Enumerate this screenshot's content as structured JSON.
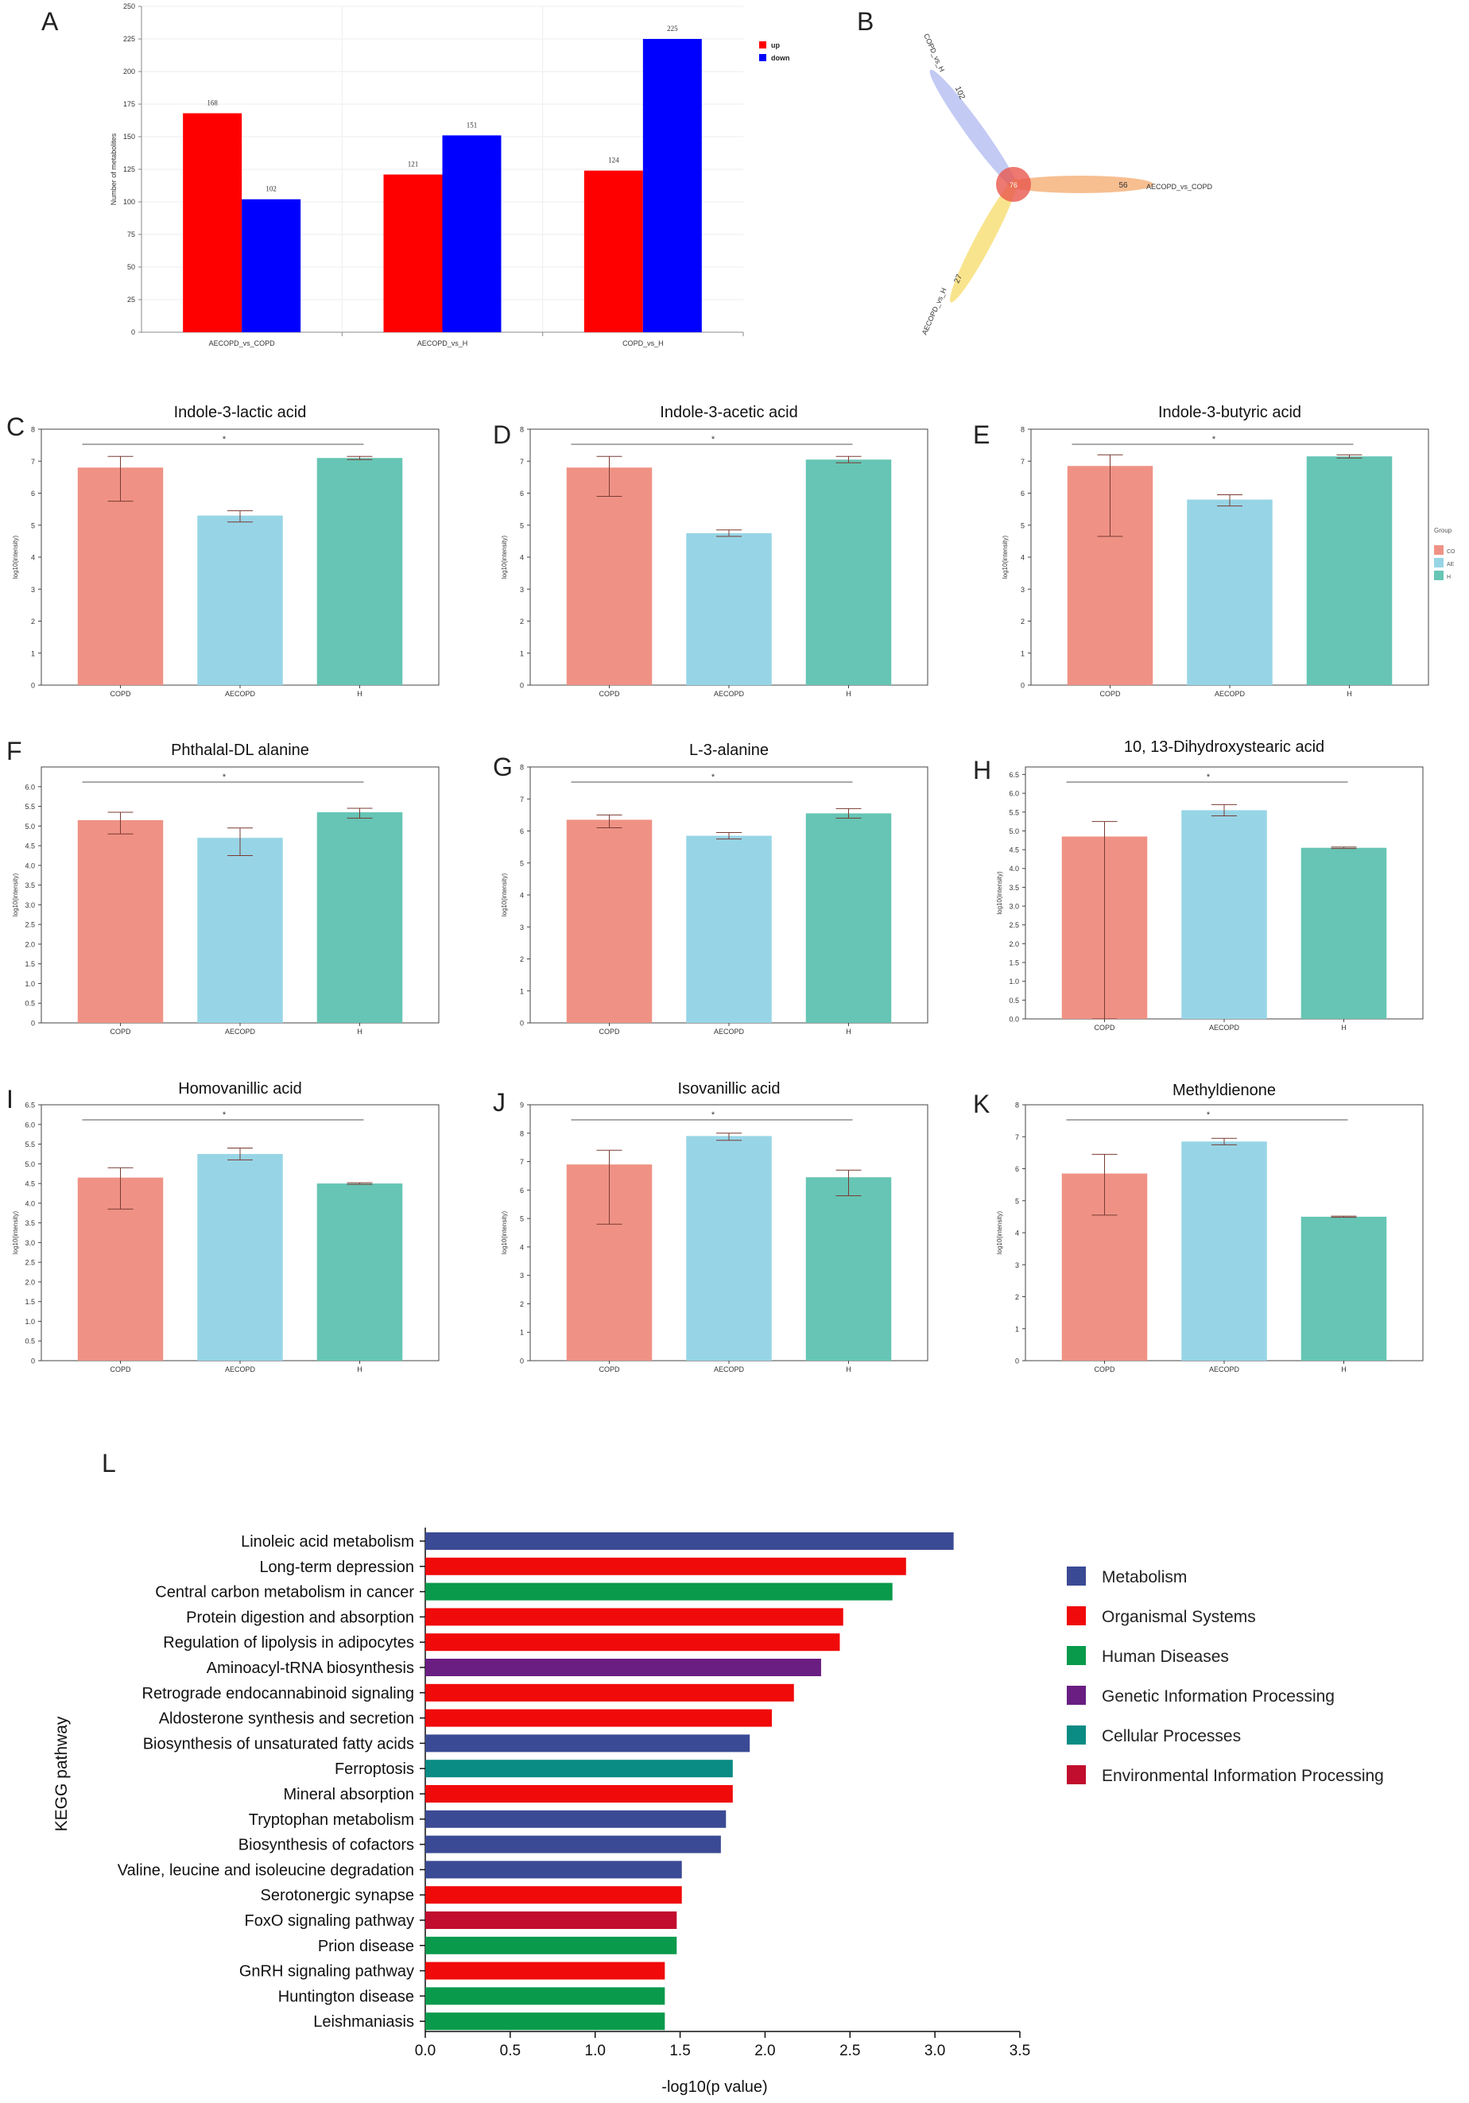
{
  "panel_letters": [
    "A",
    "B",
    "C",
    "D",
    "E",
    "F",
    "G",
    "H",
    "I",
    "J",
    "K",
    "L"
  ],
  "colors": {
    "up": "#ff0000",
    "down": "#0000ff",
    "COPD": "#ef9285",
    "AECOPD": "#97d5e6",
    "H": "#66c5b5",
    "Metabolism": "#3b4a94",
    "Organismal Systems": "#f00a0a",
    "Human Diseases": "#0a9a4c",
    "Genetic Information Processing": "#6a1e82",
    "Cellular Processes": "#0a8b84",
    "Environmental Information Processing": "#c10d2e",
    "venn_COPD_vs_H": "#a9b4f0",
    "venn_AECOPD_vs_COPD": "#f4a261",
    "venn_AECOPD_vs_H": "#f7d85e"
  },
  "chart_data": [
    {
      "id": "A",
      "type": "bar",
      "title": "",
      "xlabel": "",
      "ylabel": "Number of metabolites",
      "ylim": [
        0,
        250
      ],
      "yticks": [
        0,
        25,
        50,
        75,
        100,
        125,
        150,
        175,
        200,
        225,
        250
      ],
      "categories": [
        "AECOPD_vs_COPD",
        "AECOPD_vs_H",
        "COPD_vs_H"
      ],
      "series": [
        {
          "name": "up",
          "values": [
            168,
            121,
            124
          ]
        },
        {
          "name": "down",
          "values": [
            102,
            151,
            225
          ]
        }
      ],
      "legend": "right"
    },
    {
      "id": "B",
      "type": "venn",
      "sets": [
        {
          "name": "COPD_vs_H",
          "unique": 102
        },
        {
          "name": "AECOPD_vs_COPD",
          "unique": 56
        },
        {
          "name": "AECOPD_vs_H",
          "unique": 27
        }
      ],
      "center_label": "76"
    },
    {
      "id": "C",
      "type": "bar",
      "title": "Indole-3-lactic acid",
      "ylabel": "log10(intensity)",
      "ylim": [
        0,
        8
      ],
      "yticks": [
        0,
        1,
        2,
        3,
        4,
        5,
        6,
        7,
        8
      ],
      "categories": [
        "COPD",
        "AECOPD",
        "H"
      ],
      "values": [
        6.8,
        5.3,
        7.1
      ],
      "err_low": [
        5.75,
        5.1,
        7.05
      ],
      "err_high": [
        7.15,
        5.45,
        7.15
      ],
      "significance": "*"
    },
    {
      "id": "D",
      "type": "bar",
      "title": "Indole-3-acetic acid",
      "ylabel": "log10(intensity)",
      "ylim": [
        0,
        8
      ],
      "yticks": [
        0,
        1,
        2,
        3,
        4,
        5,
        6,
        7,
        8
      ],
      "categories": [
        "COPD",
        "AECOPD",
        "H"
      ],
      "values": [
        6.8,
        4.75,
        7.05
      ],
      "err_low": [
        5.9,
        4.65,
        6.95
      ],
      "err_high": [
        7.15,
        4.85,
        7.15
      ],
      "significance": "*"
    },
    {
      "id": "E",
      "type": "bar",
      "title": "Indole-3-butyric acid",
      "ylabel": "log10(intensity)",
      "ylim": [
        0,
        8
      ],
      "yticks": [
        0,
        1,
        2,
        3,
        4,
        5,
        6,
        7,
        8
      ],
      "categories": [
        "COPD",
        "AECOPD",
        "H"
      ],
      "values": [
        6.85,
        5.8,
        7.15
      ],
      "err_low": [
        4.65,
        5.6,
        7.1
      ],
      "err_high": [
        7.2,
        5.95,
        7.2
      ],
      "significance": "*",
      "legend": {
        "title": "Group",
        "entries": [
          "CO",
          "AE",
          "H"
        ]
      }
    },
    {
      "id": "F",
      "type": "bar",
      "title": "Phthalal-DL alanine",
      "ylabel": "log10(intensity)",
      "ylim": [
        0,
        6.5
      ],
      "yticks": [
        0,
        0.5,
        1.0,
        1.5,
        2.0,
        2.5,
        3.0,
        3.5,
        4.0,
        4.5,
        5.0,
        5.5,
        6.0
      ],
      "ytick_labels": [
        "0",
        "0.5",
        "1.0",
        "1.5",
        "2.0",
        "2.5",
        "3.0",
        "3.5",
        "4.0",
        "4.5",
        "5.0",
        "5.5",
        "6.0"
      ],
      "categories": [
        "COPD",
        "AECOPD",
        "H"
      ],
      "values": [
        5.15,
        4.7,
        5.35
      ],
      "err_low": [
        4.8,
        4.25,
        5.2
      ],
      "err_high": [
        5.35,
        4.95,
        5.45
      ],
      "significance": "*"
    },
    {
      "id": "G",
      "type": "bar",
      "title": "L-3-alanine",
      "ylabel": "log10(intensity)",
      "ylim": [
        0,
        8
      ],
      "yticks": [
        0,
        1,
        2,
        3,
        4,
        5,
        6,
        7,
        8
      ],
      "categories": [
        "COPD",
        "AECOPD",
        "H"
      ],
      "values": [
        6.35,
        5.85,
        6.55
      ],
      "err_low": [
        6.1,
        5.75,
        6.4
      ],
      "err_high": [
        6.5,
        5.95,
        6.7
      ],
      "significance": "*"
    },
    {
      "id": "H",
      "type": "bar",
      "title": "10, 13-Dihydroxystearic acid",
      "ylabel": "log10(intensity)",
      "ylim": [
        0,
        6.7
      ],
      "yticks": [
        0,
        0.5,
        1.0,
        1.5,
        2.0,
        2.5,
        3.0,
        3.5,
        4.0,
        4.5,
        5.0,
        5.5,
        6.0,
        6.5
      ],
      "ytick_labels": [
        "0.0",
        "0.5",
        "1.0",
        "1.5",
        "2.0",
        "2.5",
        "3.0",
        "3.5",
        "4.0",
        "4.5",
        "5.0",
        "5.5",
        "6.0",
        "6.5"
      ],
      "categories": [
        "COPD",
        "AECOPD",
        "H"
      ],
      "values": [
        4.85,
        5.55,
        4.55
      ],
      "err_low": [
        0,
        5.4,
        4.53
      ],
      "err_high": [
        5.25,
        5.7,
        4.57
      ],
      "significance": "*"
    },
    {
      "id": "I",
      "type": "bar",
      "title": "Homovanillic acid",
      "ylabel": "log10(intensity)",
      "ylim": [
        0,
        6.5
      ],
      "yticks": [
        0,
        0.5,
        1.0,
        1.5,
        2.0,
        2.5,
        3.0,
        3.5,
        4.0,
        4.5,
        5.0,
        5.5,
        6.0,
        6.5
      ],
      "ytick_labels": [
        "0",
        "0.5",
        "1.0",
        "1.5",
        "2.0",
        "2.5",
        "3.0",
        "3.5",
        "4.0",
        "4.5",
        "5.0",
        "5.5",
        "6.0",
        "6.5"
      ],
      "categories": [
        "COPD",
        "AECOPD",
        "H"
      ],
      "values": [
        4.65,
        5.25,
        4.5
      ],
      "err_low": [
        3.85,
        5.1,
        4.48
      ],
      "err_high": [
        4.9,
        5.4,
        4.52
      ],
      "significance": "*"
    },
    {
      "id": "J",
      "type": "bar",
      "title": "Isovanillic acid",
      "ylabel": "log10(intensity)",
      "ylim": [
        0,
        9
      ],
      "yticks": [
        0,
        1,
        2,
        3,
        4,
        5,
        6,
        7,
        8,
        9
      ],
      "categories": [
        "COPD",
        "AECOPD",
        "H"
      ],
      "values": [
        6.9,
        7.9,
        6.45
      ],
      "err_low": [
        4.8,
        7.75,
        5.8
      ],
      "err_high": [
        7.4,
        8.0,
        6.7
      ],
      "significance": "*"
    },
    {
      "id": "K",
      "type": "bar",
      "title": "Methyldienone",
      "ylabel": "log10(intensity)",
      "ylim": [
        0,
        8
      ],
      "yticks": [
        0,
        1,
        2,
        3,
        4,
        5,
        6,
        7,
        8
      ],
      "categories": [
        "COPD",
        "AECOPD",
        "H"
      ],
      "values": [
        5.85,
        6.85,
        4.5
      ],
      "err_low": [
        4.55,
        6.75,
        4.48
      ],
      "err_high": [
        6.45,
        6.95,
        4.52
      ],
      "significance": "*"
    },
    {
      "id": "L",
      "type": "bar",
      "orientation": "horizontal",
      "title": "",
      "xlabel": "-log10(p value)",
      "ylabel": "KEGG pathway",
      "xlim": [
        0,
        3.5
      ],
      "xticks": [
        0,
        0.5,
        1.0,
        1.5,
        2.0,
        2.5,
        3.0,
        3.5
      ],
      "xtick_labels": [
        "0.0",
        "0.5",
        "1.0",
        "1.5",
        "2.0",
        "2.5",
        "3.0",
        "3.5"
      ],
      "categories": [
        "Linoleic acid metabolism",
        "Long-term depression",
        "Central carbon metabolism in cancer",
        "Protein digestion and absorption",
        "Regulation of lipolysis in adipocytes",
        "Aminoacyl-tRNA biosynthesis",
        "Retrograde endocannabinoid signaling",
        "Aldosterone synthesis and secretion",
        "Biosynthesis of unsaturated fatty acids",
        "Ferroptosis",
        "Mineral absorption",
        "Tryptophan metabolism",
        "Biosynthesis of cofactors",
        "Valine, leucine and isoleucine degradation",
        "Serotonergic synapse",
        "FoxO signaling pathway",
        "Prion disease",
        "GnRH signaling pathway",
        "Huntington disease",
        "Leishmaniasis"
      ],
      "values": [
        3.11,
        2.83,
        2.75,
        2.46,
        2.44,
        2.33,
        2.17,
        2.04,
        1.91,
        1.81,
        1.81,
        1.77,
        1.74,
        1.51,
        1.51,
        1.48,
        1.48,
        1.41,
        1.41,
        1.41
      ],
      "classes": [
        "Metabolism",
        "Organismal Systems",
        "Human Diseases",
        "Organismal Systems",
        "Organismal Systems",
        "Genetic Information Processing",
        "Organismal Systems",
        "Organismal Systems",
        "Metabolism",
        "Cellular Processes",
        "Organismal Systems",
        "Metabolism",
        "Metabolism",
        "Metabolism",
        "Organismal Systems",
        "Environmental Information Processing",
        "Human Diseases",
        "Organismal Systems",
        "Human Diseases",
        "Human Diseases"
      ],
      "legend_entries": [
        "Metabolism",
        "Organismal Systems",
        "Human Diseases",
        "Genetic Information Processing",
        "Cellular Processes",
        "Environmental Information Processing"
      ],
      "legend": "right"
    }
  ]
}
